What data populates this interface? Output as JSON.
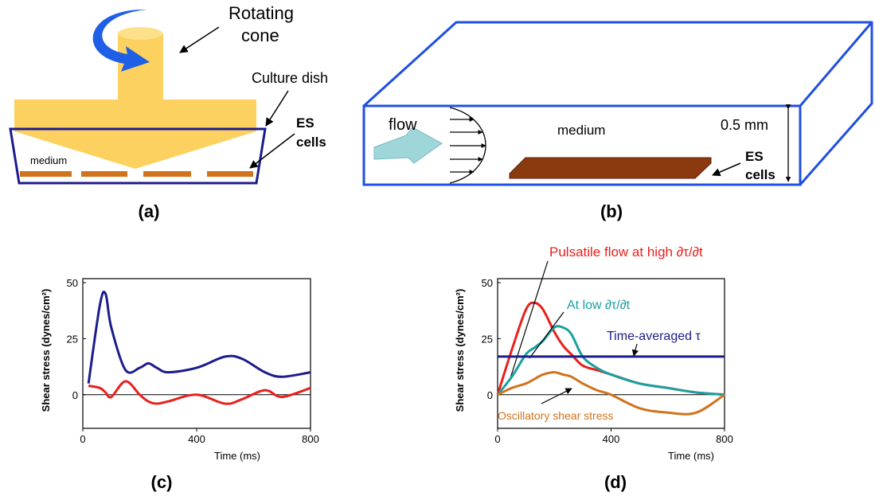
{
  "panel_a": {
    "rotating_cone": [
      "Rotating",
      "cone"
    ],
    "culture_dish": "Culture dish",
    "es_cells": [
      "ES",
      "cells"
    ],
    "medium": "medium",
    "label": "(a)"
  },
  "panel_b": {
    "flow": "flow",
    "medium": "medium",
    "height": "0.5 mm",
    "es_cells": [
      "ES",
      "cells"
    ],
    "label": "(b)"
  },
  "chart_data": [
    {
      "type": "line",
      "panel_label": "(c)",
      "x_label": "Time (ms)",
      "y_label": "Shear stress (dynes/cm²)",
      "x": [
        20,
        60,
        80,
        100,
        150,
        200,
        230,
        260,
        300,
        400,
        500,
        560,
        640,
        700,
        800
      ],
      "series": [
        {
          "color": "#1c1c8c",
          "values": [
            5,
            40,
            45,
            30,
            11,
            12,
            14,
            12,
            10,
            12,
            17,
            16,
            10,
            8,
            10
          ]
        },
        {
          "color": "#e8201c",
          "values": [
            4,
            3,
            1,
            -1,
            6,
            0,
            -3,
            -4,
            -3,
            0,
            -4,
            -2,
            2,
            -1,
            3
          ]
        }
      ],
      "xlim": [
        0,
        800
      ],
      "xticks": [
        0,
        400,
        800
      ],
      "ylim": [
        -15,
        50
      ],
      "yticks": [
        0,
        25,
        50
      ]
    },
    {
      "type": "line",
      "panel_label": "(d)",
      "x_label": "Time (ms)",
      "y_label": "Shear stress (dynes/cm²)",
      "x": [
        0,
        50,
        100,
        130,
        160,
        200,
        230,
        260,
        300,
        350,
        400,
        500,
        600,
        700,
        800
      ],
      "series": [
        {
          "name": "Pulsatile flow at high ∂τ/∂t",
          "color": "#e8201c",
          "values": [
            0,
            20,
            38,
            41,
            38,
            28,
            22,
            18,
            13,
            11,
            9,
            5,
            3,
            1,
            0
          ]
        },
        {
          "name": "At low ∂τ/∂t",
          "color": "#1aa0a0",
          "values": [
            0,
            8,
            18,
            21,
            24,
            30,
            30,
            27,
            17,
            12,
            9,
            5,
            3,
            1,
            0
          ]
        },
        {
          "name": "Time-averaged τ",
          "color": "#1c1c8c",
          "values": [
            17,
            17,
            17,
            17,
            17,
            17,
            17,
            17,
            17,
            17,
            17,
            17,
            17,
            17,
            17
          ]
        },
        {
          "name": "Oscillatory shear stress",
          "color": "#d0731c",
          "values": [
            0,
            3,
            5,
            7,
            9,
            10,
            9,
            8,
            5,
            2,
            0,
            -6,
            -8,
            -8,
            0
          ]
        }
      ],
      "xlim": [
        0,
        800
      ],
      "xticks": [
        0,
        400,
        800
      ],
      "ylim": [
        -15,
        50
      ],
      "yticks": [
        0,
        25,
        50
      ]
    }
  ]
}
